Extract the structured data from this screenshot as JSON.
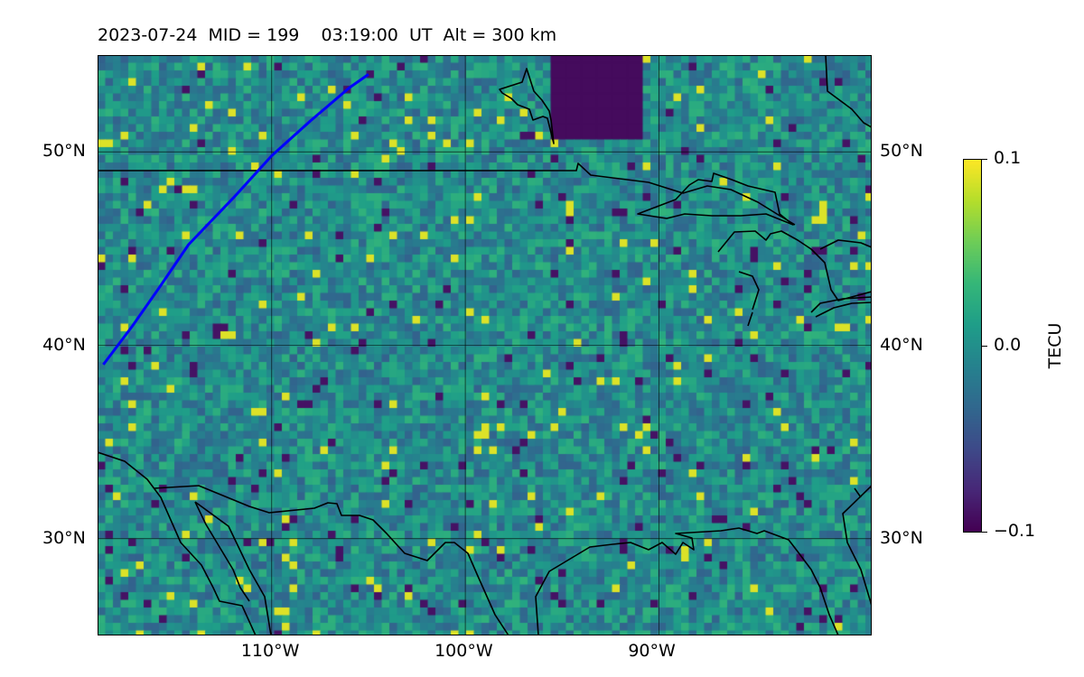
{
  "title": "2023-07-24  MID = 199    03:19:00  UT  Alt = 300 km",
  "map": {
    "lon_range": [
      -119,
      -79
    ],
    "lat_range": [
      25,
      55
    ],
    "x_ticks": [
      {
        "value": -110,
        "label": "110°W"
      },
      {
        "value": -100,
        "label": "100°W"
      },
      {
        "value": -90,
        "label": "90°W"
      }
    ],
    "y_ticks": [
      {
        "value": 30,
        "label": "30°N"
      },
      {
        "value": 40,
        "label": "40°N"
      },
      {
        "value": 50,
        "label": "50°N"
      }
    ],
    "colormap": "viridis",
    "value_range": [
      -0.1,
      0.1
    ],
    "track_color": "#0000ff",
    "track": [
      [
        -118.7,
        39
      ],
      [
        -117.2,
        41
      ],
      [
        -115.8,
        43
      ],
      [
        -114.3,
        45.2
      ],
      [
        -112,
        47.6
      ],
      [
        -110,
        49.8
      ],
      [
        -108,
        51.6
      ],
      [
        -106,
        53.3
      ],
      [
        -105,
        54
      ]
    ],
    "coastline_color": "#000000"
  },
  "colorbar": {
    "label": "TECU",
    "ticks": [
      {
        "value": 0.1,
        "label": "0.1"
      },
      {
        "value": 0.0,
        "label": "0.0"
      },
      {
        "value": -0.1,
        "label": "−0.1"
      }
    ]
  }
}
